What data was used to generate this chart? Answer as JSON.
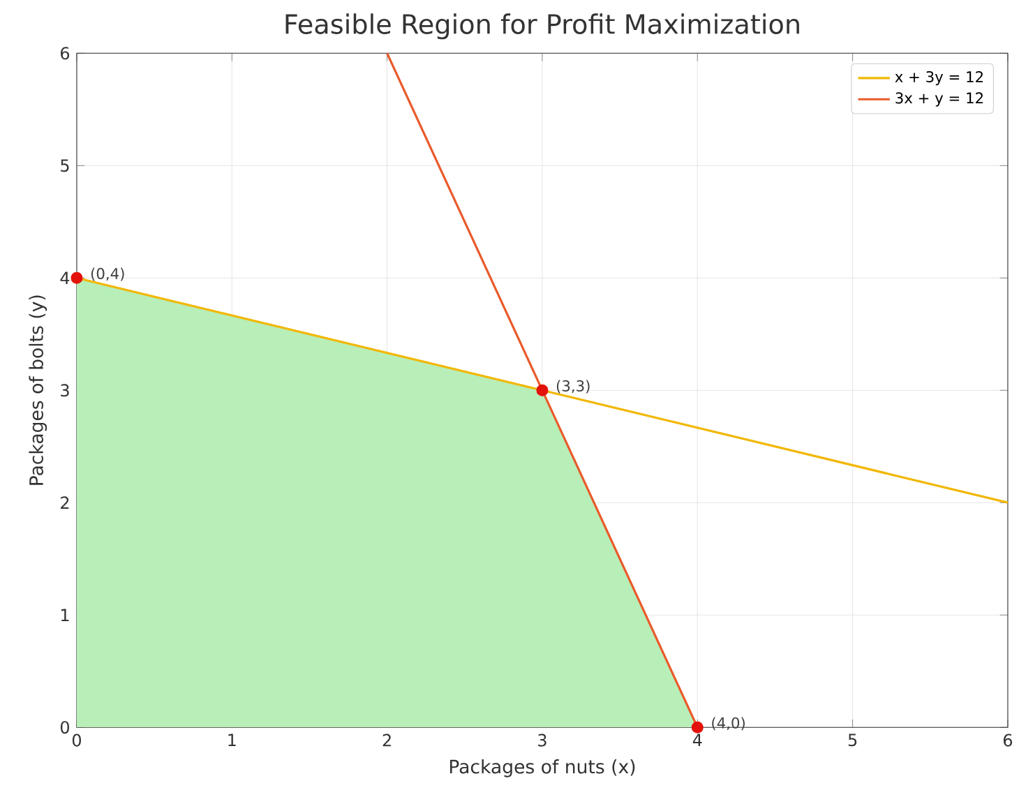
{
  "chart_data": {
    "type": "line",
    "title": "Feasible Region for Profit Maximization",
    "xlabel": "Packages of nuts (x)",
    "ylabel": "Packages of bolts (y)",
    "xlim": [
      0,
      6
    ],
    "ylim": [
      0,
      6
    ],
    "xticks": [
      0,
      1,
      2,
      3,
      4,
      5,
      6
    ],
    "yticks": [
      0,
      1,
      2,
      3,
      4,
      5,
      6
    ],
    "grid": true,
    "legend": "top right",
    "series": [
      {
        "type": "area",
        "color": "#b8eeb8",
        "x": [
          0,
          0,
          3,
          4
        ],
        "values": [
          0,
          4,
          3,
          0
        ]
      },
      {
        "name": "x + 3y = 12",
        "color": "#f2b705",
        "x": [
          0,
          6
        ],
        "values": [
          4,
          2
        ]
      },
      {
        "name": "3x + y = 12",
        "color": "#ea5a2a",
        "x": [
          2,
          4
        ],
        "values": [
          6,
          0
        ]
      },
      {
        "type": "scatter",
        "color": "#e3120b",
        "marker": "circle",
        "x": [
          0,
          3,
          4
        ],
        "values": [
          4,
          3,
          0
        ]
      }
    ],
    "annotations": [
      {
        "text": "(0,4)",
        "x": 0,
        "y": 4
      },
      {
        "text": "(3,3)",
        "x": 3,
        "y": 3
      },
      {
        "text": "(4,0)",
        "x": 4,
        "y": 0
      }
    ]
  }
}
